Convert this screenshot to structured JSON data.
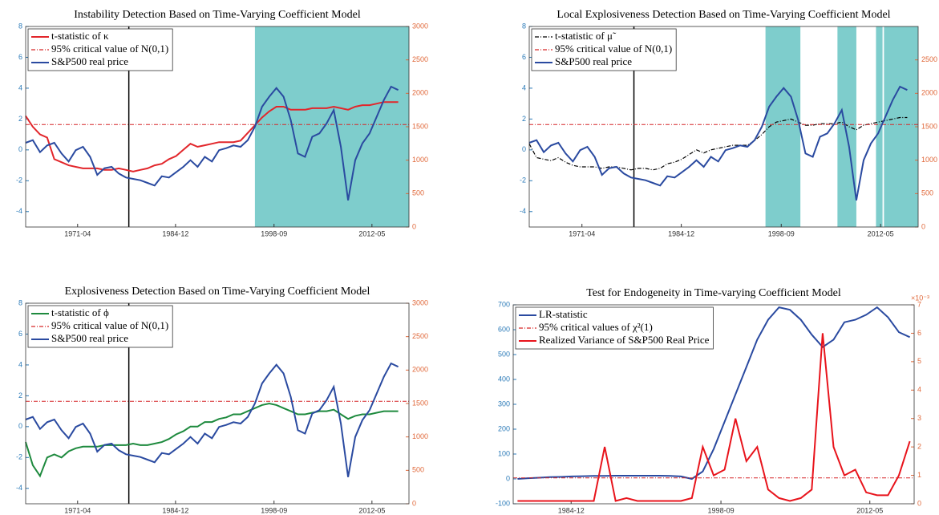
{
  "chart_data": [
    {
      "type": "line",
      "title": "Instability Detection Based on Time-Varying Coefficient Model",
      "x": [
        1964,
        1965,
        1966,
        1967,
        1968,
        1969,
        1970,
        1971,
        1972,
        1973,
        1974,
        1975,
        1976,
        1977,
        1978,
        1979,
        1980,
        1981,
        1982,
        1983,
        1984,
        1985,
        1986,
        1987,
        1988,
        1989,
        1990,
        1991,
        1992,
        1993,
        1994,
        1995,
        1996,
        1997,
        1998,
        1999,
        2000,
        2001,
        2002,
        2003,
        2004,
        2005,
        2006,
        2007,
        2008,
        2009,
        2010,
        2011,
        2012,
        2013,
        2014,
        2015,
        2016
      ],
      "series": [
        {
          "name": "t-statistic of κ",
          "color": "#e2262b",
          "values": [
            2.2,
            1.5,
            1.0,
            0.8,
            -0.6,
            -0.8,
            -1.0,
            -1.1,
            -1.2,
            -1.2,
            -1.2,
            -1.3,
            -1.3,
            -1.2,
            -1.3,
            -1.4,
            -1.3,
            -1.2,
            -1.0,
            -0.9,
            -0.6,
            -0.4,
            0.0,
            0.4,
            0.2,
            0.3,
            0.4,
            0.5,
            0.5,
            0.5,
            0.6,
            1.1,
            1.6,
            2.1,
            2.5,
            2.8,
            2.8,
            2.6,
            2.6,
            2.6,
            2.7,
            2.7,
            2.7,
            2.8,
            2.7,
            2.6,
            2.8,
            2.9,
            2.9,
            3.0,
            3.1,
            3.1,
            3.1
          ]
        },
        {
          "name": "95% critical value of N(0,1)",
          "color": "#d62728",
          "dash": true,
          "level": 1.645
        },
        {
          "name": "S&P500 real price",
          "color": "#2a4aa0",
          "axis": "y2",
          "values": [
            1260,
            1300,
            1120,
            1220,
            1260,
            1100,
            980,
            1150,
            1200,
            1050,
            780,
            880,
            900,
            800,
            740,
            720,
            700,
            660,
            620,
            760,
            740,
            820,
            900,
            1000,
            900,
            1050,
            980,
            1150,
            1180,
            1220,
            1200,
            1300,
            1500,
            1800,
            1950,
            2080,
            1950,
            1600,
            1100,
            1050,
            1350,
            1400,
            1550,
            1750,
            1200,
            400,
            1000,
            1250,
            1400,
            1650,
            1900,
            2100,
            2050
          ]
        }
      ],
      "xlim": [
        1964,
        2017.5
      ],
      "xticks": [
        {
          "value": 1971.25,
          "label": "1971-04"
        },
        {
          "value": 1984.917,
          "label": "1984-12"
        },
        {
          "value": 1998.667,
          "label": "1998-09"
        },
        {
          "value": 2012.333,
          "label": "2012-05"
        }
      ],
      "ylim": [
        -5,
        8
      ],
      "yticks": [
        -4,
        -2,
        0,
        2,
        4,
        6,
        8
      ],
      "y2lim": [
        0,
        3000
      ],
      "y2ticks": [
        0,
        500,
        1000,
        1500,
        2000,
        2500,
        3000
      ],
      "shade": [
        [
          1996,
          2017.5
        ]
      ],
      "shade_color": "#7ecdcc",
      "vline": 1978.4,
      "legend": "upper left"
    },
    {
      "type": "line",
      "title": "Local Explosiveness Detection Based on Time-Varying Coefficient Model",
      "x": [
        1964,
        1965,
        1966,
        1967,
        1968,
        1969,
        1970,
        1971,
        1972,
        1973,
        1974,
        1975,
        1976,
        1977,
        1978,
        1979,
        1980,
        1981,
        1982,
        1983,
        1984,
        1985,
        1986,
        1987,
        1988,
        1989,
        1990,
        1991,
        1992,
        1993,
        1994,
        1995,
        1996,
        1997,
        1998,
        1999,
        2000,
        2001,
        2002,
        2003,
        2004,
        2005,
        2006,
        2007,
        2008,
        2009,
        2010,
        2011,
        2012,
        2013,
        2014,
        2015,
        2016
      ],
      "series": [
        {
          "name": "t-statistic of μ̃",
          "color": "#000000",
          "dash": true,
          "values": [
            0.4,
            -0.5,
            -0.6,
            -0.7,
            -0.5,
            -0.8,
            -1.0,
            -1.1,
            -1.1,
            -1.1,
            -1.2,
            -1.1,
            -1.1,
            -1.2,
            -1.3,
            -1.2,
            -1.2,
            -1.3,
            -1.2,
            -0.9,
            -0.8,
            -0.6,
            -0.3,
            0.0,
            -0.2,
            0.0,
            0.1,
            0.2,
            0.3,
            0.3,
            0.3,
            0.6,
            1.0,
            1.5,
            1.8,
            1.9,
            2.0,
            1.8,
            1.6,
            1.6,
            1.7,
            1.7,
            1.7,
            1.8,
            1.5,
            1.3,
            1.6,
            1.7,
            1.8,
            1.9,
            2.0,
            2.1,
            2.1
          ]
        },
        {
          "name": "95% critical value of N(0,1)",
          "color": "#d62728",
          "dash": true,
          "level": 1.645
        },
        {
          "name": "S&P500 real price",
          "color": "#2a4aa0",
          "axis": "y2",
          "values": [
            1260,
            1300,
            1120,
            1220,
            1260,
            1100,
            980,
            1150,
            1200,
            1050,
            780,
            880,
            900,
            800,
            740,
            720,
            700,
            660,
            620,
            760,
            740,
            820,
            900,
            1000,
            900,
            1050,
            980,
            1150,
            1180,
            1220,
            1200,
            1300,
            1500,
            1800,
            1950,
            2080,
            1950,
            1600,
            1100,
            1050,
            1350,
            1400,
            1550,
            1750,
            1200,
            400,
            1000,
            1250,
            1400,
            1650,
            1900,
            2100,
            2050
          ]
        }
      ],
      "xlim": [
        1964,
        2017.5
      ],
      "xticks": [
        {
          "value": 1971.25,
          "label": "1971-04"
        },
        {
          "value": 1984.917,
          "label": "1984-12"
        },
        {
          "value": 1998.667,
          "label": "1998-09"
        },
        {
          "value": 2012.333,
          "label": "2012-05"
        }
      ],
      "ylim": [
        -5,
        8
      ],
      "yticks": [
        -4,
        -2,
        0,
        2,
        4,
        6,
        8
      ],
      "y2lim": [
        0,
        3000
      ],
      "y2ticks": [
        0,
        500,
        1000,
        1500,
        2000,
        2500
      ],
      "shade": [
        [
          1996.5,
          2001.3
        ],
        [
          2006.4,
          2009.0
        ],
        [
          2011.7,
          2012.6
        ],
        [
          2012.8,
          2017.5
        ]
      ],
      "shade_color": "#7ecdcc",
      "vline": 1978.4,
      "legend": "upper left"
    },
    {
      "type": "line",
      "title": "Explosiveness Detection Based on Time-Varying Coefficient Model",
      "x": [
        1964,
        1965,
        1966,
        1967,
        1968,
        1969,
        1970,
        1971,
        1972,
        1973,
        1974,
        1975,
        1976,
        1977,
        1978,
        1979,
        1980,
        1981,
        1982,
        1983,
        1984,
        1985,
        1986,
        1987,
        1988,
        1989,
        1990,
        1991,
        1992,
        1993,
        1994,
        1995,
        1996,
        1997,
        1998,
        1999,
        2000,
        2001,
        2002,
        2003,
        2004,
        2005,
        2006,
        2007,
        2008,
        2009,
        2010,
        2011,
        2012,
        2013,
        2014,
        2015,
        2016
      ],
      "series": [
        {
          "name": "t-statistic of ϕ",
          "color": "#1e8a3e",
          "values": [
            -1.0,
            -2.5,
            -3.2,
            -2.0,
            -1.8,
            -2.0,
            -1.6,
            -1.4,
            -1.3,
            -1.3,
            -1.3,
            -1.2,
            -1.2,
            -1.2,
            -1.2,
            -1.1,
            -1.2,
            -1.2,
            -1.1,
            -1.0,
            -0.8,
            -0.5,
            -0.3,
            0.0,
            0.0,
            0.3,
            0.3,
            0.5,
            0.6,
            0.8,
            0.8,
            1.0,
            1.2,
            1.4,
            1.5,
            1.4,
            1.2,
            1.0,
            0.8,
            0.8,
            0.9,
            1.0,
            1.0,
            1.1,
            0.8,
            0.5,
            0.7,
            0.8,
            0.8,
            0.9,
            1.0,
            1.0,
            1.0
          ]
        },
        {
          "name": "95% critical value of N(0,1)",
          "color": "#d62728",
          "dash": true,
          "level": 1.645
        },
        {
          "name": "S&P500 real price",
          "color": "#2a4aa0",
          "axis": "y2",
          "values": [
            1260,
            1300,
            1120,
            1220,
            1260,
            1100,
            980,
            1150,
            1200,
            1050,
            780,
            880,
            900,
            800,
            740,
            720,
            700,
            660,
            620,
            760,
            740,
            820,
            900,
            1000,
            900,
            1050,
            980,
            1150,
            1180,
            1220,
            1200,
            1300,
            1500,
            1800,
            1950,
            2080,
            1950,
            1600,
            1100,
            1050,
            1350,
            1400,
            1550,
            1750,
            1200,
            400,
            1000,
            1250,
            1400,
            1650,
            1900,
            2100,
            2050
          ]
        }
      ],
      "xlim": [
        1964,
        2017.5
      ],
      "xticks": [
        {
          "value": 1971.25,
          "label": "1971-04"
        },
        {
          "value": 1984.917,
          "label": "1984-12"
        },
        {
          "value": 1998.667,
          "label": "1998-09"
        },
        {
          "value": 2012.333,
          "label": "2012-05"
        }
      ],
      "ylim": [
        -5,
        8
      ],
      "yticks": [
        -4,
        -2,
        0,
        2,
        4,
        6,
        8
      ],
      "y2lim": [
        0,
        3000
      ],
      "y2ticks": [
        0,
        500,
        1000,
        1500,
        2000,
        2500,
        3000
      ],
      "vline": 1978.4,
      "legend": "upper left"
    },
    {
      "type": "line",
      "title": "Test for Endogeneity in Time-varying Coefficient Model",
      "x": [
        1980,
        1981,
        1982,
        1983,
        1984,
        1985,
        1986,
        1987,
        1988,
        1989,
        1990,
        1991,
        1992,
        1993,
        1994,
        1995,
        1996,
        1997,
        1998,
        1999,
        2000,
        2001,
        2002,
        2003,
        2004,
        2005,
        2006,
        2007,
        2008,
        2009,
        2010,
        2011,
        2012,
        2013,
        2014,
        2015,
        2016
      ],
      "series": [
        {
          "name": "LR-statistic",
          "color": "#2a4aa0",
          "values": [
            0,
            3,
            5,
            7,
            8,
            10,
            11,
            12,
            12,
            13,
            13,
            13,
            13,
            13,
            12,
            10,
            0,
            30,
            120,
            230,
            340,
            450,
            560,
            640,
            690,
            680,
            640,
            580,
            530,
            560,
            630,
            640,
            660,
            690,
            650,
            590,
            570
          ]
        },
        {
          "name": "95% critical values of χ²(1)",
          "color": "#d62728",
          "dash": true,
          "level": 3.84
        },
        {
          "name": "Realized Variance of S&P500 Real Price",
          "color": "#e8141c",
          "axis": "y2",
          "values": [
            0.1,
            0.1,
            0.1,
            0.1,
            0.1,
            0.1,
            0.1,
            0.1,
            2.0,
            0.1,
            0.2,
            0.1,
            0.1,
            0.1,
            0.1,
            0.1,
            0.2,
            2.0,
            1.0,
            1.2,
            3.0,
            1.5,
            2.0,
            0.5,
            0.2,
            0.1,
            0.2,
            0.5,
            6.0,
            2.0,
            1.0,
            1.2,
            0.4,
            0.3,
            0.3,
            1.0,
            2.2
          ]
        }
      ],
      "xlim": [
        1979.6,
        2016.4
      ],
      "xticks": [
        {
          "value": 1984.917,
          "label": "1984-12"
        },
        {
          "value": 1998.667,
          "label": "1998-09"
        },
        {
          "value": 2012.333,
          "label": "2012-05"
        }
      ],
      "ylim": [
        -100,
        700
      ],
      "yticks": [
        -100,
        0,
        100,
        200,
        300,
        400,
        500,
        600,
        700
      ],
      "y2lim": [
        0,
        7
      ],
      "y2ticks": [
        0,
        1,
        2,
        3,
        4,
        5,
        6,
        7
      ],
      "y2_exponent": "×10⁻³",
      "legend": "upper left"
    }
  ]
}
